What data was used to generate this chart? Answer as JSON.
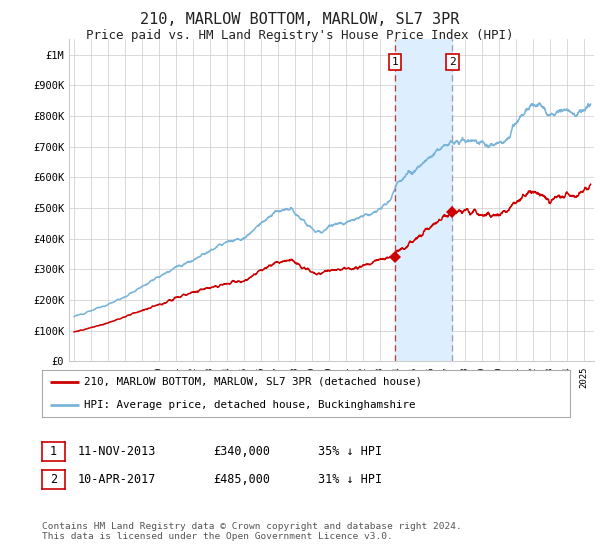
{
  "title": "210, MARLOW BOTTOM, MARLOW, SL7 3PR",
  "subtitle": "Price paid vs. HM Land Registry's House Price Index (HPI)",
  "title_fontsize": 11,
  "subtitle_fontsize": 9,
  "ylim": [
    0,
    1050000
  ],
  "xlim_start": 1994.7,
  "xlim_end": 2025.6,
  "hpi_color": "#7ab4d8",
  "price_color": "#cc0000",
  "purchase1_date": 2013.87,
  "purchase1_price": 340000,
  "purchase2_date": 2017.27,
  "purchase2_price": 485000,
  "shade_color": "#ddeeff",
  "vline1_color": "#cc3333",
  "vline2_color": "#9999bb",
  "legend_label1": "210, MARLOW BOTTOM, MARLOW, SL7 3PR (detached house)",
  "legend_label2": "HPI: Average price, detached house, Buckinghamshire",
  "table_row1": [
    "1",
    "11-NOV-2013",
    "£340,000",
    "35% ↓ HPI"
  ],
  "table_row2": [
    "2",
    "10-APR-2017",
    "£485,000",
    "31% ↓ HPI"
  ],
  "footnote": "Contains HM Land Registry data © Crown copyright and database right 2024.\nThis data is licensed under the Open Government Licence v3.0.",
  "ytick_labels": [
    "£0",
    "£100K",
    "£200K",
    "£300K",
    "£400K",
    "£500K",
    "£600K",
    "£700K",
    "£800K",
    "£900K",
    "£1M"
  ],
  "ytick_values": [
    0,
    100000,
    200000,
    300000,
    400000,
    500000,
    600000,
    700000,
    800000,
    900000,
    1000000
  ],
  "xtick_years": [
    1995,
    1996,
    1997,
    1998,
    1999,
    2000,
    2001,
    2002,
    2003,
    2004,
    2005,
    2006,
    2007,
    2008,
    2009,
    2010,
    2011,
    2012,
    2013,
    2014,
    2015,
    2016,
    2017,
    2018,
    2019,
    2020,
    2021,
    2022,
    2023,
    2024,
    2025
  ],
  "background_color": "#ffffff",
  "grid_color": "#cccccc"
}
